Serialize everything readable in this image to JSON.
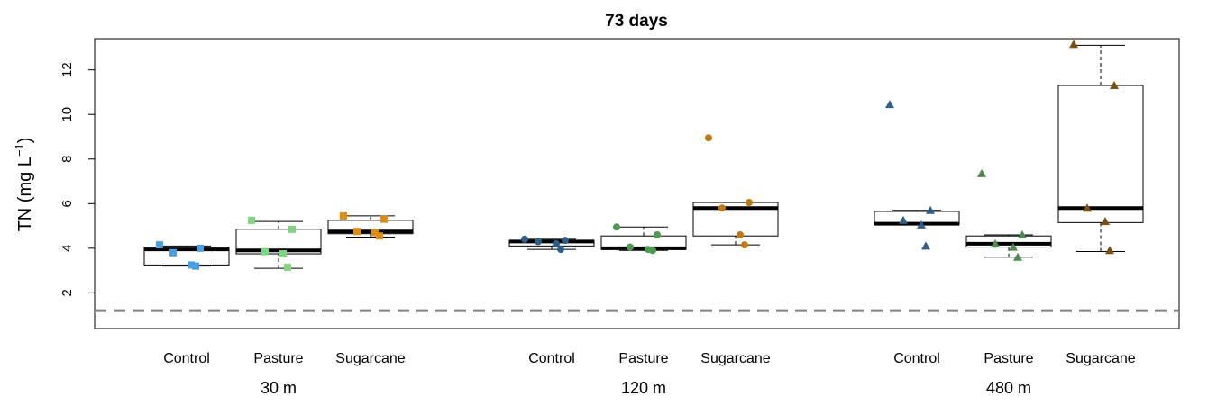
{
  "chart_data": {
    "type": "box",
    "title": "73 days",
    "ylabel": "TN (mg L−1)",
    "ylim": [
      0.4,
      13.4
    ],
    "yticks": [
      2,
      4,
      6,
      8,
      10,
      12
    ],
    "reference_line": {
      "y": 1.2,
      "style": "dashed",
      "color": "#808080"
    },
    "grid": false,
    "groups": [
      {
        "label": "30 m",
        "marker": "square",
        "boxes": [
          {
            "category": "Control",
            "color": "#4a9fe0",
            "stats": {
              "min": 3.2,
              "q1": 3.25,
              "median": 3.95,
              "q3": 4.05,
              "max": 4.1
            },
            "points": [
              4.15,
              4.0,
              3.8,
              3.25,
              3.2
            ]
          },
          {
            "category": "Pasture",
            "color": "#7dd87d",
            "stats": {
              "min": 3.1,
              "q1": 3.75,
              "median": 3.9,
              "q3": 4.85,
              "max": 5.2
            },
            "points": [
              5.25,
              4.85,
              3.85,
              3.75,
              3.15
            ]
          },
          {
            "category": "Sugarcane",
            "color": "#e08a10",
            "stats": {
              "min": 4.5,
              "q1": 4.65,
              "median": 4.75,
              "q3": 5.25,
              "max": 5.45
            },
            "points": [
              5.45,
              5.3,
              4.75,
              4.7,
              4.55
            ]
          }
        ]
      },
      {
        "label": "120 m",
        "marker": "circle",
        "boxes": [
          {
            "category": "Control",
            "color": "#2d5f8a",
            "stats": {
              "min": 3.95,
              "q1": 4.1,
              "median": 4.3,
              "q3": 4.35,
              "max": 4.4
            },
            "points": [
              4.4,
              4.35,
              4.3,
              4.2,
              3.95
            ]
          },
          {
            "category": "Pasture",
            "color": "#4f9a4f",
            "stats": {
              "min": 3.9,
              "q1": 3.95,
              "median": 4.0,
              "q3": 4.55,
              "max": 4.95
            },
            "points": [
              4.95,
              4.6,
              4.05,
              3.95,
              3.9
            ]
          },
          {
            "category": "Sugarcane",
            "color": "#c27a10",
            "stats": {
              "min": 4.15,
              "q1": 4.55,
              "median": 5.8,
              "q3": 6.05,
              "max": 6.05
            },
            "points": [
              8.95,
              6.05,
              5.8,
              4.6,
              4.15
            ]
          }
        ]
      },
      {
        "label": "480 m",
        "marker": "triangle",
        "boxes": [
          {
            "category": "Control",
            "color": "#2d5f8a",
            "stats": {
              "min": 5.05,
              "q1": 5.05,
              "median": 5.1,
              "q3": 5.65,
              "max": 5.7
            },
            "points": [
              10.45,
              5.7,
              5.25,
              5.05,
              4.1
            ]
          },
          {
            "category": "Pasture",
            "color": "#4f8a4f",
            "stats": {
              "min": 3.6,
              "q1": 4.05,
              "median": 4.2,
              "q3": 4.55,
              "max": 4.6
            },
            "points": [
              7.35,
              4.6,
              4.2,
              4.05,
              3.6
            ]
          },
          {
            "category": "Sugarcane",
            "color": "#7a4f10",
            "stats": {
              "min": 3.85,
              "q1": 5.15,
              "median": 5.8,
              "q3": 11.3,
              "max": 13.1
            },
            "points": [
              13.15,
              11.3,
              5.8,
              5.2,
              3.9
            ]
          }
        ]
      }
    ]
  }
}
